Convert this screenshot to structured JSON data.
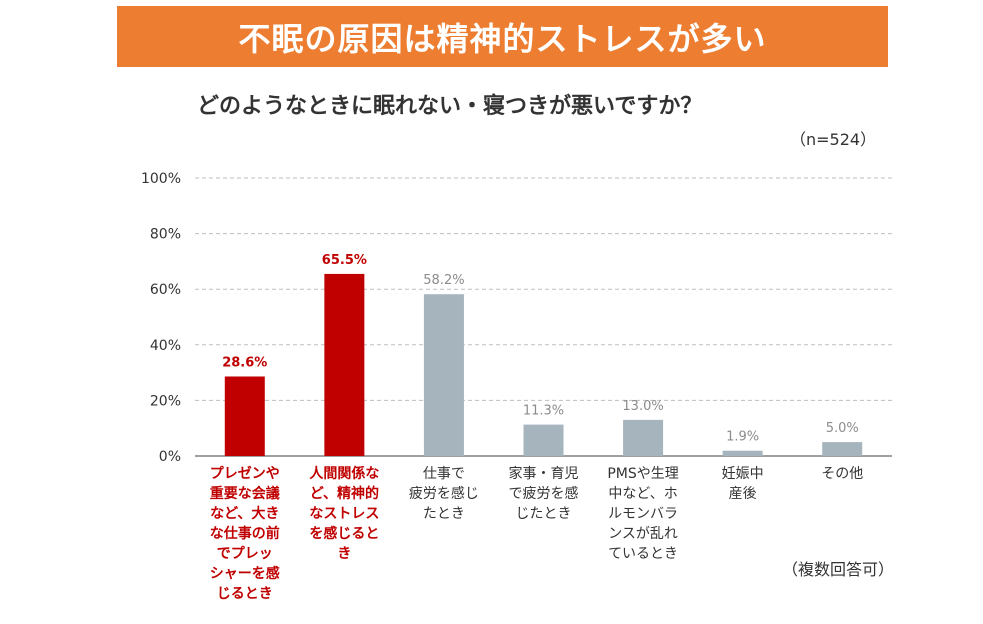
{
  "banner": {
    "title": "不眠の原因は精神的ストレスが多い"
  },
  "question": "どのようなときに眠れない・寝つきが悪いですか？",
  "sample_size": "（n=524）",
  "note": "（複数回答可）",
  "colors": {
    "banner": "#ED7D31",
    "highlight": "#C00000",
    "normal": "#A6B4BD",
    "grid": "#BFBFBF"
  },
  "chart_data": {
    "type": "bar",
    "title": "",
    "xlabel": "",
    "ylabel": "",
    "ylim": [
      0,
      100
    ],
    "y_ticks": [
      "0%",
      "20%",
      "40%",
      "60%",
      "80%",
      "100%"
    ],
    "grid": true,
    "categories": [
      "プレゼンや重要な会議など、大きな仕事の前でプレッシャーを感じるとき",
      "人間関係など、精神的なストレスを感じるとき",
      "仕事で疲労を感じたとき",
      "家事・育児で疲労を感じたとき",
      "PMSや生理中など、ホルモンバランスが乱れているとき",
      "妊娠中産後",
      "その他"
    ],
    "category_lines": [
      [
        "プレゼンや",
        "重要な会議",
        "など、大き",
        "な仕事の前",
        "でプレッ",
        "シャーを感",
        "じるとき"
      ],
      [
        "人間関係な",
        "ど、精神的",
        "なストレス",
        "を感じると",
        "き"
      ],
      [
        "仕事で",
        "疲労を感じ",
        "たとき"
      ],
      [
        "家事・育児",
        "で疲労を感",
        "じたとき"
      ],
      [
        "PMSや生理",
        "中など、ホ",
        "ルモンバラ",
        "ンスが乱れ",
        "ているとき"
      ],
      [
        "妊娠中",
        "産後"
      ],
      [
        "その他"
      ]
    ],
    "values": [
      28.6,
      65.5,
      58.2,
      11.3,
      13.0,
      1.9,
      5.0
    ],
    "data_labels": [
      "28.6%",
      "65.5%",
      "58.2%",
      "11.3%",
      "13.0%",
      "1.9%",
      "5.0%"
    ],
    "highlighted": [
      true,
      true,
      false,
      false,
      false,
      false,
      false
    ]
  }
}
